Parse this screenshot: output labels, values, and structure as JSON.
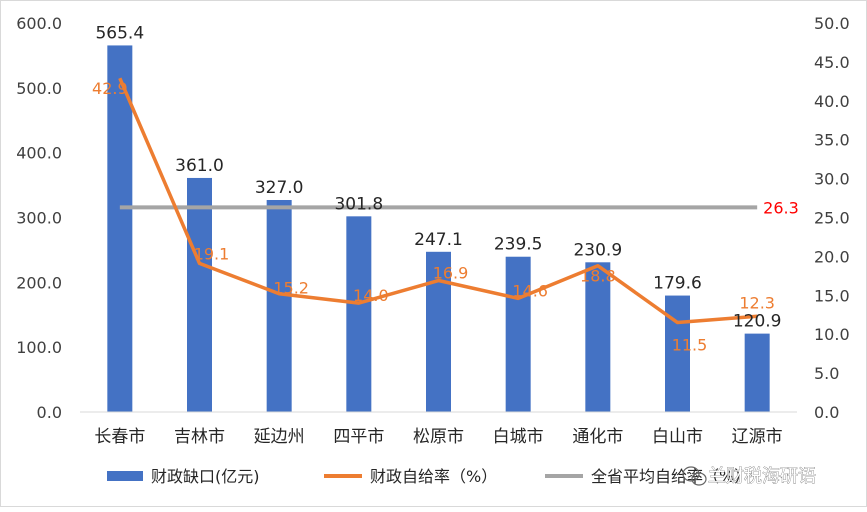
{
  "chart_data": {
    "type": "bar",
    "categories": [
      "长春市",
      "吉林市",
      "延边州",
      "四平市",
      "松原市",
      "白城市",
      "通化市",
      "白山市",
      "辽源市"
    ],
    "series": [
      {
        "name": "财政缺口(亿元)",
        "type": "bar",
        "axis": "left",
        "color": "#4472C4",
        "values": [
          565.4,
          361.0,
          327.0,
          301.8,
          247.1,
          239.5,
          230.9,
          179.6,
          120.9
        ],
        "labels": [
          "565.4",
          "361.0",
          "327.0",
          "301.8",
          "247.1",
          "239.5",
          "230.9",
          "179.6",
          "120.9"
        ]
      },
      {
        "name": "财政自给率（%）",
        "type": "line",
        "axis": "right",
        "color": "#ED7D31",
        "values": [
          42.9,
          19.1,
          15.2,
          14.0,
          16.9,
          14.6,
          18.8,
          11.5,
          12.3
        ],
        "labels": [
          "42.9",
          "19.1",
          "15.2",
          "14.0",
          "16.9",
          "14.6",
          "18.8",
          "11.5",
          "12.3"
        ]
      },
      {
        "name": "全省平均自给率（%）",
        "type": "line",
        "axis": "right",
        "color": "#A5A5A5",
        "values": [
          26.3,
          26.3,
          26.3,
          26.3,
          26.3,
          26.3,
          26.3,
          26.3,
          26.3
        ],
        "end_label": "26.3",
        "end_label_color": "#FF0000"
      }
    ],
    "y_left": {
      "ticks": [
        0,
        100,
        200,
        300,
        400,
        500,
        600
      ],
      "tick_labels": [
        "0.0",
        "100.0",
        "200.0",
        "300.0",
        "400.0",
        "500.0",
        "600.0"
      ],
      "range": [
        0,
        600
      ]
    },
    "y_right": {
      "ticks": [
        0,
        5,
        10,
        15,
        20,
        25,
        30,
        35,
        40,
        45,
        50
      ],
      "tick_labels": [
        "0.0",
        "5.0",
        "10.0",
        "15.0",
        "20.0",
        "25.0",
        "30.0",
        "35.0",
        "40.0",
        "45.0",
        "50.0"
      ],
      "range": [
        0,
        50
      ]
    },
    "grid": false,
    "legend_position": "bottom"
  },
  "watermark": {
    "icon": "wechat-icon",
    "text": "兰财税海研语"
  }
}
